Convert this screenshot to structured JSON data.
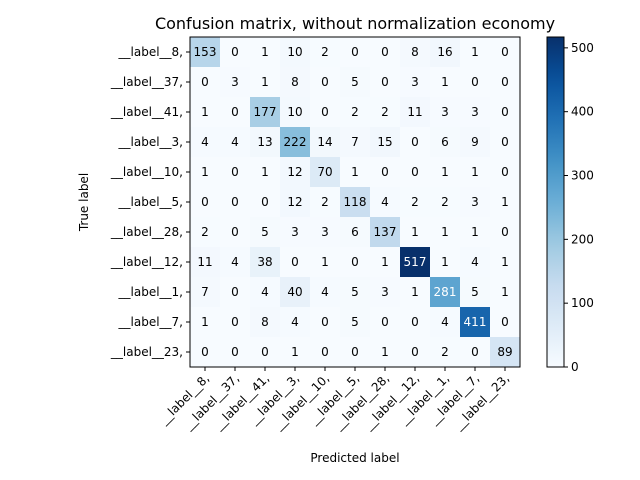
{
  "chart_data": {
    "type": "heatmap",
    "title": "Confusion matrix, without normalization economy",
    "xlabel": "Predicted label",
    "ylabel": "True label",
    "row_labels": [
      "__label__8,",
      "__label__37,",
      "__label__41,",
      "__label__3,",
      "__label__10,",
      "__label__5,",
      "__label__28,",
      "__label__12,",
      "__label__1,",
      "__label__7,",
      "__label__23,"
    ],
    "col_labels": [
      "__label__8,",
      "__label__37,",
      "__label__41,",
      "__label__3,",
      "__label__10,",
      "__label__5,",
      "__label__28,",
      "__label__12,",
      "__label__1,",
      "__label__7,",
      "__label__23,"
    ],
    "matrix": [
      [
        153,
        0,
        1,
        10,
        2,
        0,
        0,
        8,
        16,
        1,
        0
      ],
      [
        0,
        3,
        1,
        8,
        0,
        5,
        0,
        3,
        1,
        0,
        0
      ],
      [
        1,
        0,
        177,
        10,
        0,
        2,
        2,
        11,
        3,
        3,
        0
      ],
      [
        4,
        4,
        13,
        222,
        14,
        7,
        15,
        0,
        6,
        9,
        0
      ],
      [
        1,
        0,
        1,
        12,
        70,
        1,
        0,
        0,
        1,
        1,
        0
      ],
      [
        0,
        0,
        0,
        12,
        2,
        118,
        4,
        2,
        2,
        3,
        1
      ],
      [
        2,
        0,
        5,
        3,
        3,
        6,
        137,
        1,
        1,
        1,
        0
      ],
      [
        11,
        4,
        38,
        0,
        1,
        0,
        1,
        517,
        1,
        4,
        1
      ],
      [
        7,
        0,
        4,
        40,
        4,
        5,
        3,
        1,
        281,
        5,
        1
      ],
      [
        1,
        0,
        8,
        4,
        0,
        5,
        0,
        0,
        4,
        411,
        0
      ],
      [
        0,
        0,
        0,
        1,
        0,
        0,
        1,
        0,
        2,
        0,
        89
      ]
    ],
    "colormap": "Blues",
    "vmin": 0,
    "vmax": 517,
    "colorbar_ticks": [
      0,
      100,
      200,
      300,
      400,
      500
    ]
  }
}
